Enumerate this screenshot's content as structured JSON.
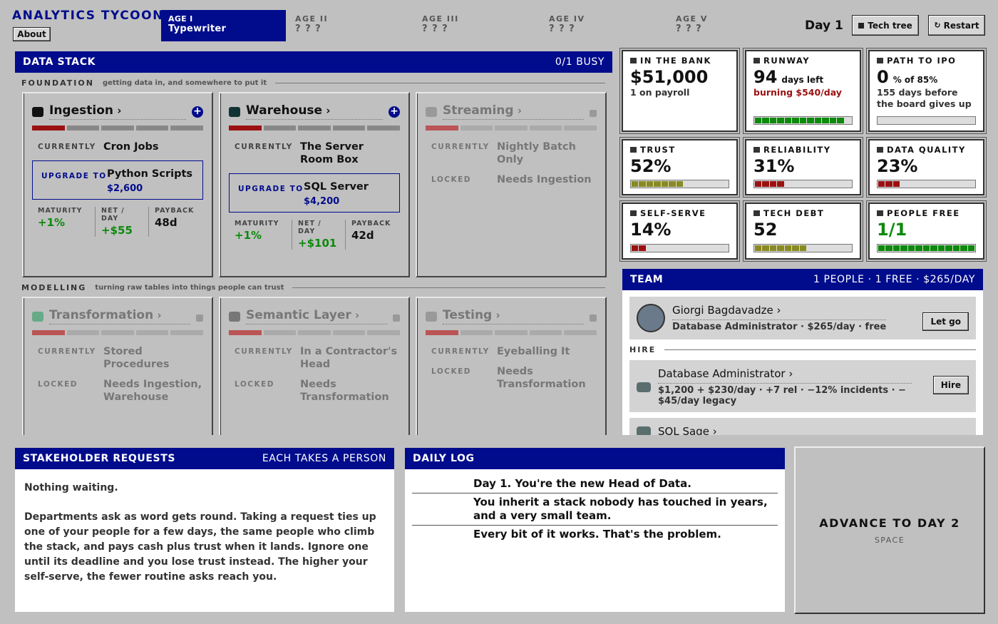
{
  "header": {
    "title": "ANALYTICS TYCOON",
    "about": "About",
    "ages": [
      {
        "label": "AGE I",
        "name": "Typewriter"
      },
      {
        "label": "AGE II",
        "name": "? ? ?"
      },
      {
        "label": "AGE III",
        "name": "? ? ?"
      },
      {
        "label": "AGE IV",
        "name": "? ? ?"
      },
      {
        "label": "AGE V",
        "name": "? ? ?"
      }
    ],
    "day": "Day 1",
    "tech_tree": "Tech tree",
    "restart": "Restart"
  },
  "data_stack": {
    "title": "DATA STACK",
    "busy": "0/1 BUSY",
    "sections": [
      {
        "title": "FOUNDATION",
        "subtitle": "getting data in, and somewhere to put it",
        "cards": [
          {
            "name": "Ingestion",
            "currently_label": "CURRENTLY",
            "currently": "Cron Jobs",
            "upgrade_label": "UPGRADE TO",
            "upgrade": "Python Scripts",
            "cost": "$2,600",
            "stats": [
              {
                "label": "MATURITY",
                "value": "+1%"
              },
              {
                "label": "NET / DAY",
                "value": "+$55"
              },
              {
                "label": "PAYBACK",
                "value": "48d"
              }
            ]
          },
          {
            "name": "Warehouse",
            "currently_label": "CURRENTLY",
            "currently": "The Server Room Box",
            "upgrade_label": "UPGRADE TO",
            "upgrade": "SQL Server",
            "cost": "$4,200",
            "stats": [
              {
                "label": "MATURITY",
                "value": "+1%"
              },
              {
                "label": "NET / DAY",
                "value": "+$101"
              },
              {
                "label": "PAYBACK",
                "value": "42d"
              }
            ]
          },
          {
            "name": "Streaming",
            "currently_label": "CURRENTLY",
            "currently": "Nightly Batch Only",
            "locked_label": "LOCKED",
            "locked": "Needs Ingestion"
          }
        ]
      },
      {
        "title": "MODELLING",
        "subtitle": "turning raw tables into things people can trust",
        "cards": [
          {
            "name": "Transformation",
            "currently_label": "CURRENTLY",
            "currently": "Stored Procedures",
            "locked_label": "LOCKED",
            "locked": "Needs Ingestion, Warehouse"
          },
          {
            "name": "Semantic Layer",
            "currently_label": "CURRENTLY",
            "currently": "In a Contractor's Head",
            "locked_label": "LOCKED",
            "locked": "Needs Transformation"
          },
          {
            "name": "Testing",
            "currently_label": "CURRENTLY",
            "currently": "Eyeballing It",
            "locked_label": "LOCKED",
            "locked": "Needs Transformation"
          }
        ]
      }
    ]
  },
  "stats": [
    {
      "label": "IN THE BANK",
      "value": "$51,000",
      "sub": "1 on payroll"
    },
    {
      "label": "RUNWAY",
      "value": "94",
      "unit": "days left",
      "sub": "burning $540/day"
    },
    {
      "label": "PATH TO IPO",
      "value": "0",
      "unit": "% of 85%",
      "sub": "155 days before the board gives up"
    },
    {
      "label": "TRUST",
      "value": "52%"
    },
    {
      "label": "RELIABILITY",
      "value": "31%"
    },
    {
      "label": "DATA QUALITY",
      "value": "23%"
    },
    {
      "label": "SELF-SERVE",
      "value": "14%"
    },
    {
      "label": "TECH DEBT",
      "value": "52"
    },
    {
      "label": "PEOPLE FREE",
      "value": "1/1"
    }
  ],
  "team": {
    "title": "TEAM",
    "summary": "1 PEOPLE · 1 FREE · $265/DAY",
    "members": [
      {
        "name": "Giorgi Bagdavadze",
        "detail": "Database Administrator · $265/day · free",
        "action": "Let go"
      }
    ],
    "hire_title": "HIRE",
    "hires": [
      {
        "role": "Database Administrator",
        "detail": "$1,200 + $230/day · +7 rel · −12% incidents · −$45/day legacy",
        "action": "Hire"
      },
      {
        "role": "SQL Sage"
      }
    ]
  },
  "requests": {
    "title": "STAKEHOLDER REQUESTS",
    "note": "EACH TAKES A PERSON",
    "empty": "Nothing waiting.",
    "text": "Departments ask as word gets round. Taking a request ties up one of your people for a few days, the same people who climb the stack, and pays cash plus trust when it lands. Ignore one until its deadline and you lose trust instead. The higher your self-serve, the fewer routine asks reach you."
  },
  "log": {
    "title": "DAILY LOG",
    "entries": [
      "Day 1. You're the new Head of Data.",
      "You inherit a stack nobody has touched in years, and a very small team.",
      "Every bit of it works. That's the problem."
    ]
  },
  "advance": {
    "label": "ADVANCE TO DAY 2",
    "key": "SPACE"
  }
}
